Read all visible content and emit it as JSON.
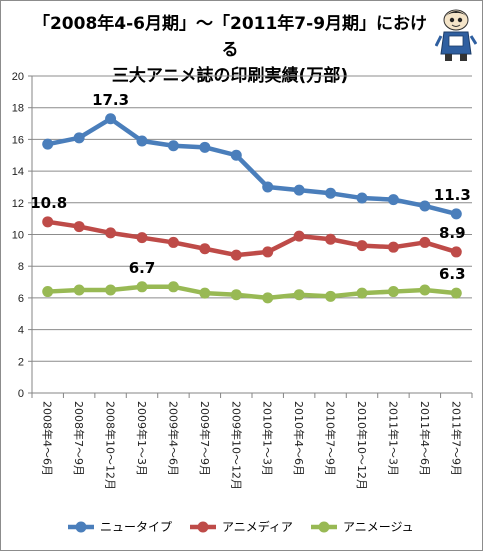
{
  "header": {
    "title_line1": "「2008年4-6月期」〜「2011年7-9月期」における",
    "title_line2": "三大アニメ誌の印刷実績(万部)"
  },
  "mascot": {
    "icon": "mascot-character-icon"
  },
  "colors": {
    "series": [
      "#4a7ebb",
      "#be4b48",
      "#98b954"
    ],
    "grid": "#8c8c8c",
    "axis": "#868686"
  },
  "chart_data": {
    "type": "line",
    "title": "「2008年4-6月期」〜「2011年7-9月期」における三大アニメ誌の印刷実績(万部)",
    "xlabel": "",
    "ylabel": "",
    "ylim": [
      0,
      20
    ],
    "yticks": [
      0,
      2,
      4,
      6,
      8,
      10,
      12,
      14,
      16,
      18,
      20
    ],
    "grid": true,
    "legend_position": "bottom",
    "categories": [
      "2008年4〜6月",
      "2008年7〜9月",
      "2008年10〜12月",
      "2009年1〜3月",
      "2009年4〜6月",
      "2009年7〜9月",
      "2009年10〜12月",
      "2010年1〜3月",
      "2010年4〜6月",
      "2010年7〜9月",
      "2010年10〜12月",
      "2011年1〜3月",
      "2011年4〜6月",
      "2011年7〜9月"
    ],
    "series": [
      {
        "name": "ニュータイプ",
        "values": [
          15.7,
          16.1,
          17.3,
          15.9,
          15.6,
          15.5,
          15.0,
          13.0,
          12.8,
          12.6,
          12.3,
          12.2,
          11.8,
          11.3
        ]
      },
      {
        "name": "アニメディア",
        "values": [
          10.8,
          10.5,
          10.1,
          9.8,
          9.5,
          9.1,
          8.7,
          8.9,
          9.9,
          9.7,
          9.3,
          9.2,
          9.5,
          8.9
        ]
      },
      {
        "name": "アニメージュ",
        "values": [
          6.4,
          6.5,
          6.5,
          6.7,
          6.7,
          6.3,
          6.2,
          6.0,
          6.2,
          6.1,
          6.3,
          6.4,
          6.5,
          6.3
        ]
      }
    ],
    "data_labels": [
      {
        "series": 0,
        "index": 2,
        "text": "17.3"
      },
      {
        "series": 0,
        "index": 13,
        "text": "11.3"
      },
      {
        "series": 1,
        "index": 0,
        "text": "10.8"
      },
      {
        "series": 1,
        "index": 13,
        "text": "8.9"
      },
      {
        "series": 2,
        "index": 3,
        "text": "6.7"
      },
      {
        "series": 2,
        "index": 13,
        "text": "6.3"
      }
    ]
  }
}
